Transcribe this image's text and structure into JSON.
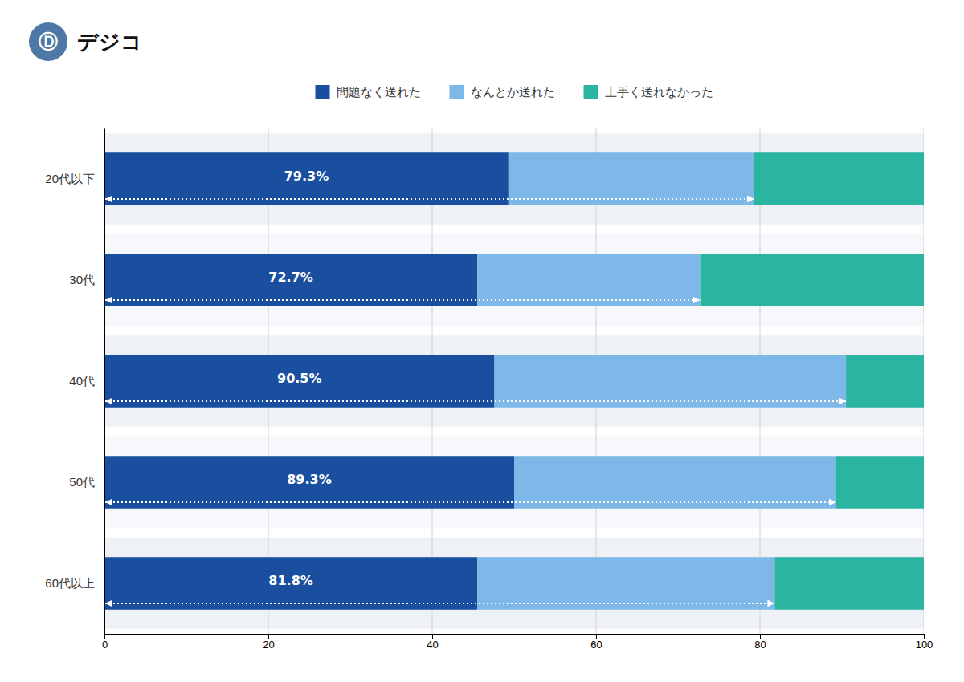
{
  "chart_data": {
    "type": "bar",
    "orientation": "horizontal",
    "stacked": true,
    "categories": [
      "20代以下",
      "30代",
      "40代",
      "50代",
      "60代以上"
    ],
    "series": [
      {
        "name": "問題なく送れた",
        "color": "#1a4fa0",
        "values": [
          49.3,
          45.5,
          47.6,
          50.0,
          45.5
        ]
      },
      {
        "name": "なんとか送れた",
        "color": "#7db8e8",
        "values": [
          30.0,
          27.2,
          42.9,
          39.3,
          36.3
        ]
      },
      {
        "name": "上手く送れなかった",
        "color": "#29b5a0",
        "values": [
          20.7,
          27.3,
          9.5,
          10.7,
          18.2
        ]
      }
    ],
    "combined": {
      "values": [
        79.3,
        72.7,
        90.5,
        89.3,
        81.8
      ],
      "value_labels": [
        "79.3%",
        "72.7%",
        "90.5%",
        "89.3%",
        "81.8%"
      ]
    },
    "xlim": [
      0,
      100
    ],
    "xticks": [
      0,
      20,
      40,
      60,
      80,
      100
    ],
    "grid": true,
    "legend": "top",
    "annotations": [
      "Ⓓ",
      "デジコ"
    ]
  }
}
